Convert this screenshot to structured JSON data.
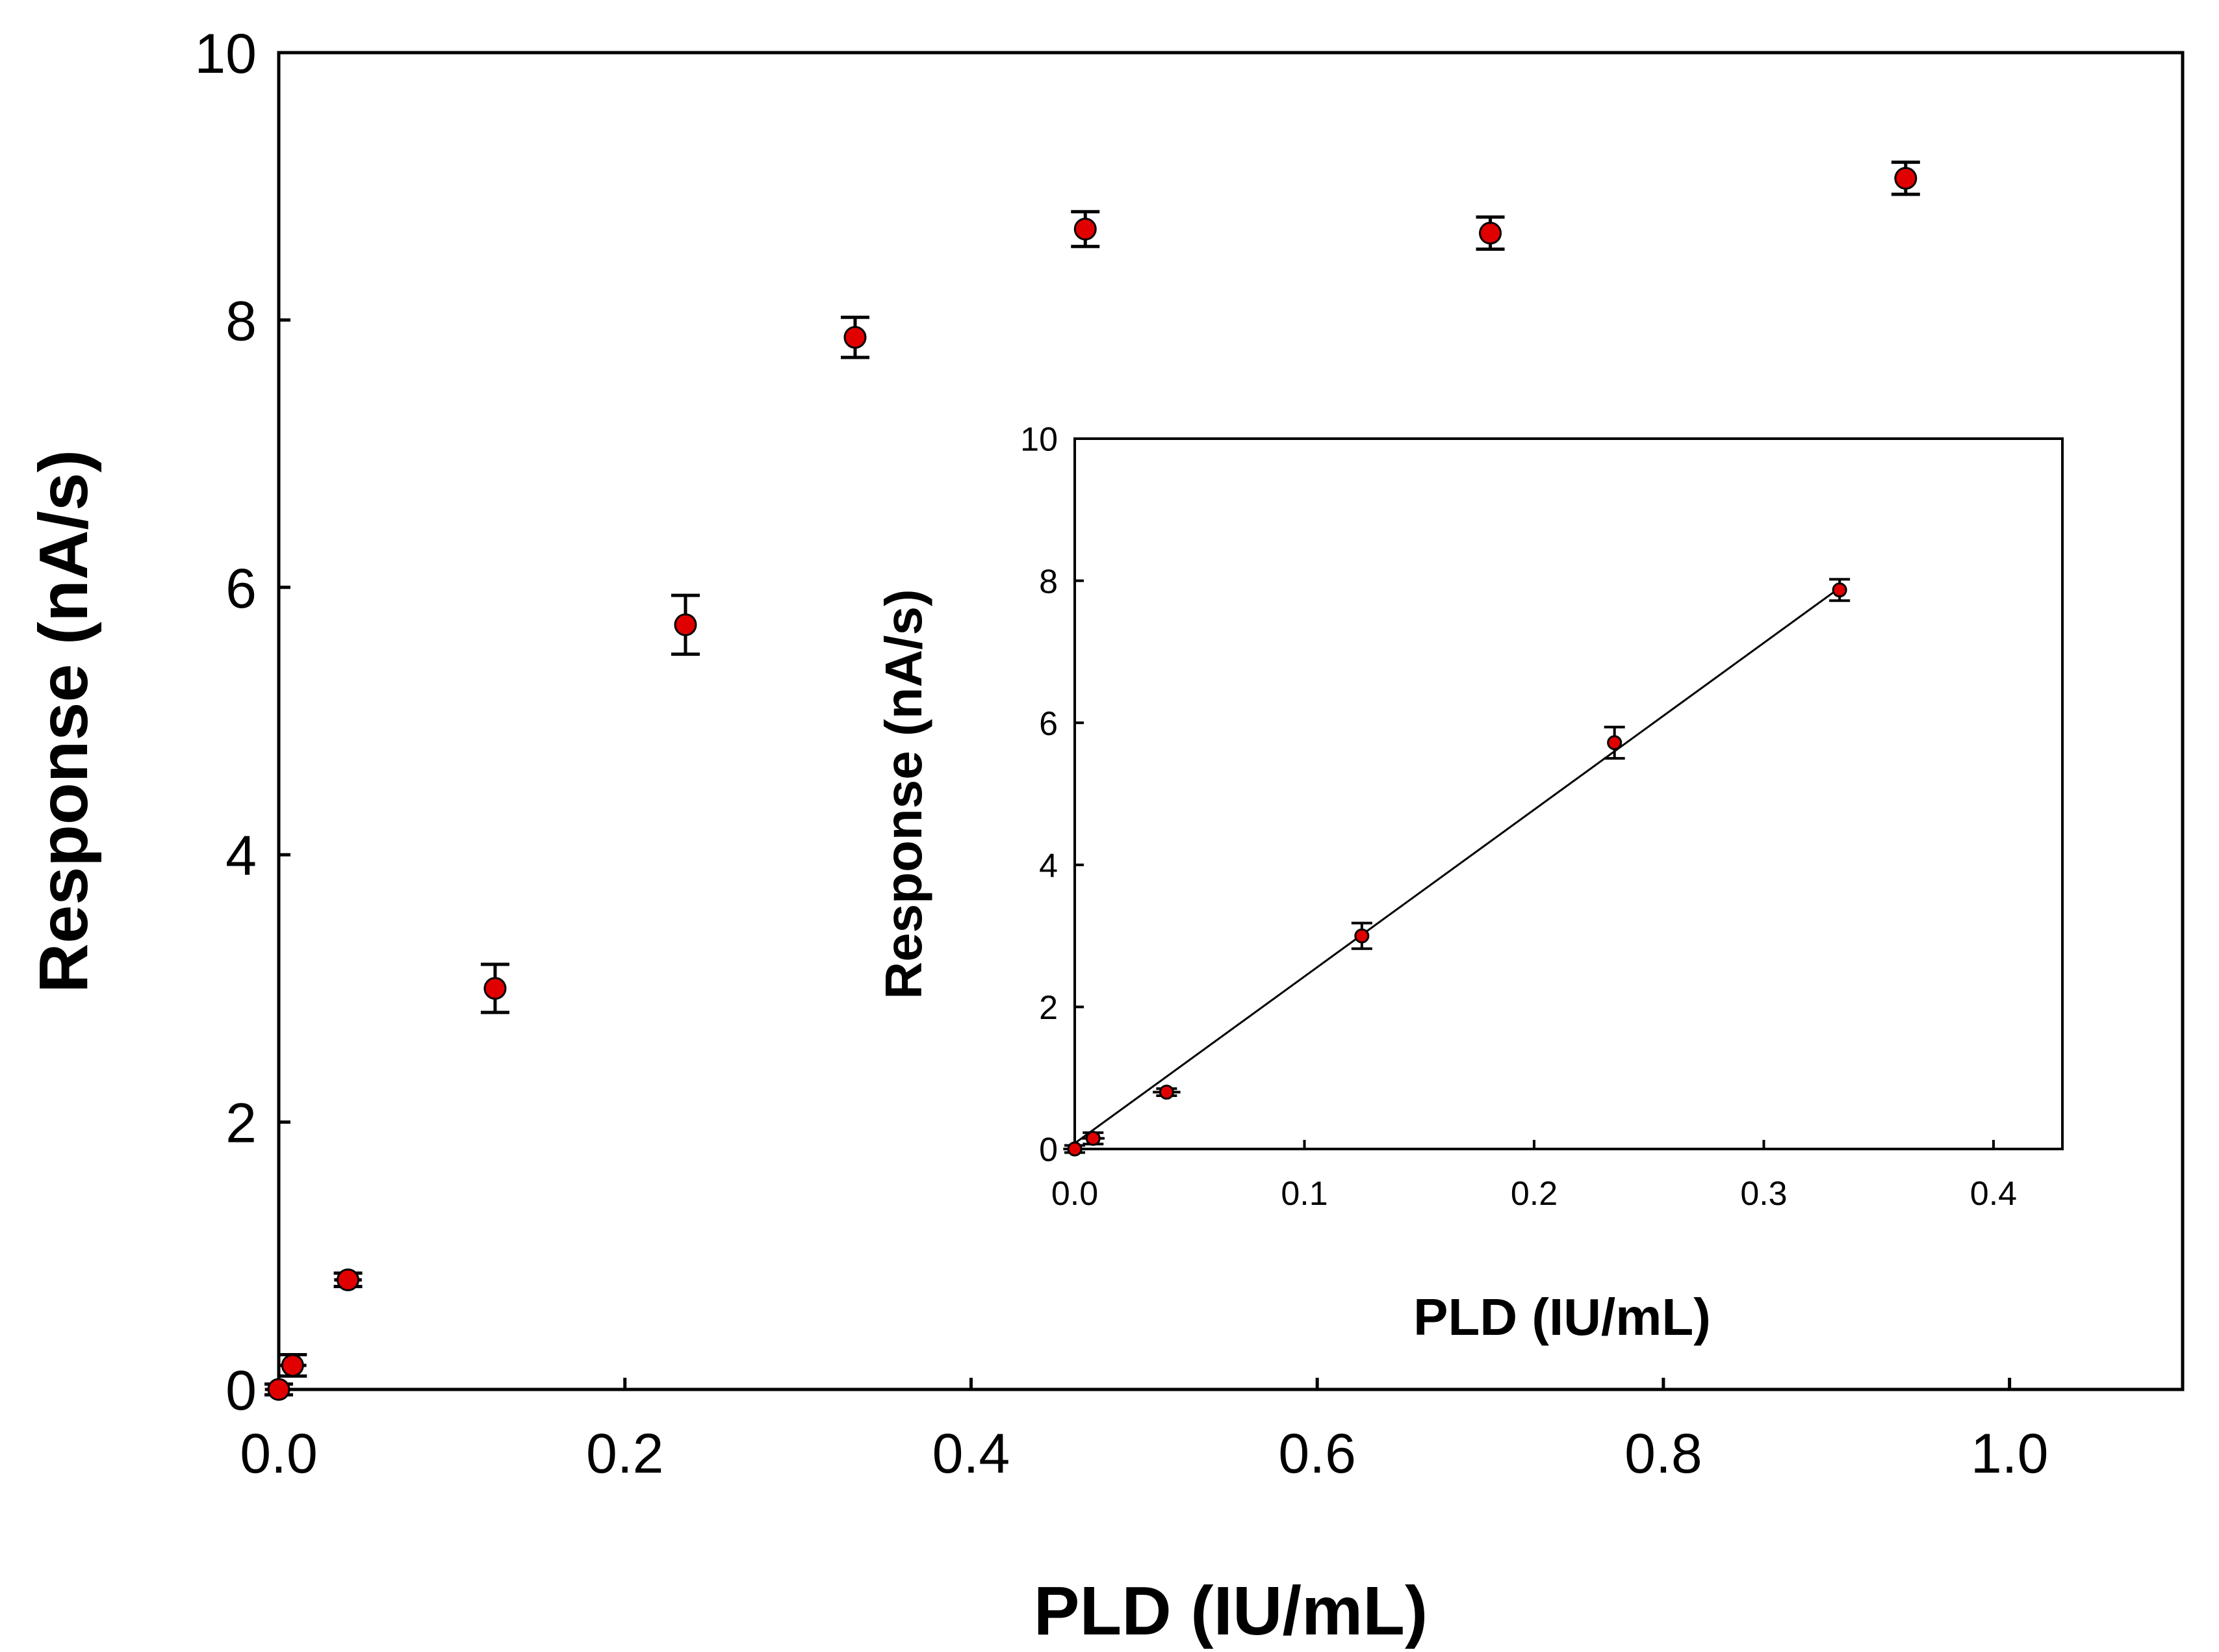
{
  "chart_data": [
    {
      "type": "scatter",
      "name": "main",
      "xlabel": "PLD (IU/mL)",
      "ylabel": "Response (nA/s)",
      "xlim": [
        0,
        1.1
      ],
      "ylim": [
        0,
        10
      ],
      "xticks": [
        0,
        0.2,
        0.4,
        0.6,
        0.8,
        1.0
      ],
      "xtick_labels": [
        "0.0",
        "0.2",
        "0.4",
        "0.6",
        "0.8",
        "1.0"
      ],
      "yticks": [
        0,
        2,
        4,
        6,
        8,
        10
      ],
      "ytick_labels": [
        "0",
        "2",
        "4",
        "6",
        "8",
        "10"
      ],
      "marker_color": "#e00000",
      "grid": false,
      "points": [
        {
          "x": 0.0,
          "y": 0.0,
          "xerr": 0.008,
          "yerr": 0.04
        },
        {
          "x": 0.008,
          "y": 0.18,
          "xerr": 0.008,
          "yerr": 0.08
        },
        {
          "x": 0.04,
          "y": 0.82,
          "xerr": 0.008,
          "yerr": 0.05
        },
        {
          "x": 0.125,
          "y": 3.0,
          "xerr": 0.0,
          "yerr": 0.18
        },
        {
          "x": 0.235,
          "y": 5.72,
          "xerr": 0.0,
          "yerr": 0.22
        },
        {
          "x": 0.333,
          "y": 7.87,
          "xerr": 0.0,
          "yerr": 0.15
        },
        {
          "x": 0.466,
          "y": 8.68,
          "xerr": 0.0,
          "yerr": 0.13
        },
        {
          "x": 0.7,
          "y": 8.65,
          "xerr": 0.0,
          "yerr": 0.12
        },
        {
          "x": 0.94,
          "y": 9.06,
          "xerr": 0.0,
          "yerr": 0.12
        }
      ]
    },
    {
      "type": "scatter",
      "name": "inset",
      "xlabel": "PLD (IU/mL)",
      "ylabel": "Response (nA/s)",
      "xlim": [
        0,
        0.43
      ],
      "ylim": [
        0,
        10
      ],
      "xticks": [
        0,
        0.1,
        0.2,
        0.3,
        0.4
      ],
      "xtick_labels": [
        "0.0",
        "0.1",
        "0.2",
        "0.3",
        "0.4"
      ],
      "yticks": [
        0,
        2,
        4,
        6,
        8,
        10
      ],
      "ytick_labels": [
        "0",
        "2",
        "4",
        "6",
        "8",
        "10"
      ],
      "marker_color": "#e00000",
      "grid": false,
      "points": [
        {
          "x": 0.0,
          "y": 0.0,
          "xerr": 0.005,
          "yerr": 0.05
        },
        {
          "x": 0.008,
          "y": 0.15,
          "xerr": 0.005,
          "yerr": 0.08
        },
        {
          "x": 0.04,
          "y": 0.8,
          "xerr": 0.006,
          "yerr": 0.05
        },
        {
          "x": 0.125,
          "y": 3.0,
          "xerr": 0.0,
          "yerr": 0.18
        },
        {
          "x": 0.235,
          "y": 5.72,
          "xerr": 0.0,
          "yerr": 0.22
        },
        {
          "x": 0.333,
          "y": 7.87,
          "xerr": 0.0,
          "yerr": 0.15
        }
      ],
      "fit_line": {
        "x": [
          0.0,
          0.333
        ],
        "y": [
          0.08,
          7.9
        ]
      }
    }
  ]
}
